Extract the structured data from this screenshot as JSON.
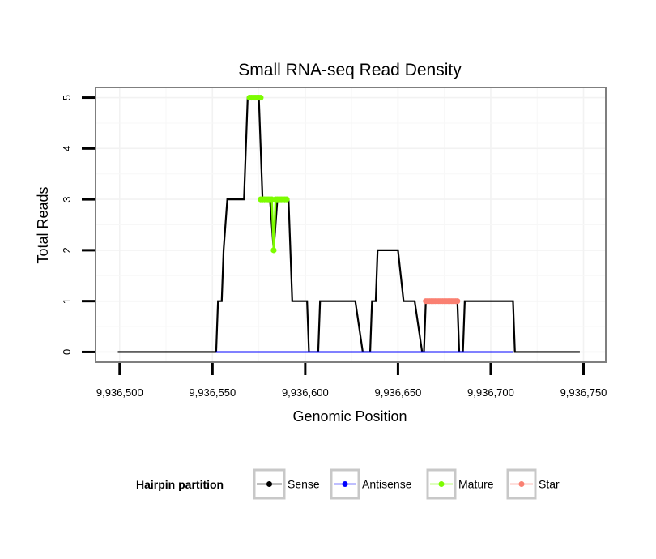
{
  "chart_data": {
    "type": "line",
    "title": "Small RNA-seq Read Density",
    "xlabel": "Genomic Position",
    "ylabel": "Total Reads",
    "xlim": [
      9936487,
      9936762
    ],
    "ylim": [
      -0.2,
      5.2
    ],
    "x_ticks": [
      9936500,
      9936550,
      9936600,
      9936650,
      9936700,
      9936750
    ],
    "x_tick_labels": [
      "9,936,500",
      "9,936,550",
      "9,936,600",
      "9,936,650",
      "9,936,700",
      "9,936,750"
    ],
    "y_ticks": [
      0,
      1,
      2,
      3,
      4,
      5
    ],
    "y_tick_labels": [
      "0",
      "1",
      "2",
      "3",
      "4",
      "5"
    ],
    "grid": true,
    "legend": {
      "title": "Hairpin partition",
      "position": "bottom",
      "entries": [
        "Sense",
        "Antisense",
        "Mature",
        "Star"
      ]
    },
    "series": [
      {
        "name": "Sense",
        "color": "#000000",
        "x": [
          9936499,
          9936552,
          9936553,
          9936555,
          9936556,
          9936558,
          9936567,
          9936569,
          9936573,
          9936575,
          9936577,
          9936579,
          9936581,
          9936583,
          9936585,
          9936587,
          9936589,
          9936591,
          9936593,
          9936596,
          9936599,
          9936600,
          9936601,
          9936602,
          9936607,
          9936608,
          9936627,
          9936631,
          9936632,
          9936635,
          9936636,
          9936638,
          9936639,
          9936650,
          9936653,
          9936654,
          9936659,
          9936663,
          9936664,
          9936665,
          9936682,
          9936683,
          9936685,
          9936686,
          9936712,
          9936713,
          9936748
        ],
        "y": [
          0,
          0,
          1,
          1,
          2,
          3,
          3,
          5,
          5,
          5,
          3,
          3,
          3,
          2,
          3,
          3,
          3,
          3,
          1,
          1,
          1,
          1,
          1,
          0,
          0,
          1,
          1,
          0,
          0,
          0,
          1,
          1,
          2,
          2,
          1,
          1,
          1,
          0,
          0,
          1,
          1,
          0,
          0,
          1,
          1,
          0,
          0
        ],
        "points": false
      },
      {
        "name": "Antisense",
        "color": "#0000ff",
        "x": [
          9936552,
          9936712
        ],
        "y": [
          0,
          0
        ],
        "points": false
      },
      {
        "name": "Mature",
        "color": "#7cfc00",
        "x": [
          9936570,
          9936571,
          9936572,
          9936573,
          9936574,
          9936575,
          9936576,
          9936576,
          9936577,
          9936578,
          9936579,
          9936580,
          9936581,
          9936582,
          9936583,
          9936584,
          9936585,
          9936586,
          9936587,
          9936588,
          9936589,
          9936590
        ],
        "y": [
          5,
          5,
          5,
          5,
          5,
          5,
          5,
          3,
          3,
          3,
          3,
          3,
          3,
          3,
          2,
          3,
          3,
          3,
          3,
          3,
          3,
          3
        ],
        "points": true,
        "segments": [
          [
            0,
            6
          ],
          [
            7,
            21
          ]
        ]
      },
      {
        "name": "Star",
        "color": "#fa8072",
        "x": [
          9936665,
          9936666,
          9936667,
          9936668,
          9936669,
          9936670,
          9936671,
          9936672,
          9936673,
          9936674,
          9936675,
          9936676,
          9936677,
          9936678,
          9936679,
          9936680,
          9936681,
          9936682
        ],
        "y": [
          1,
          1,
          1,
          1,
          1,
          1,
          1,
          1,
          1,
          1,
          1,
          1,
          1,
          1,
          1,
          1,
          1,
          1
        ],
        "points": true,
        "segments": [
          [
            0,
            17
          ]
        ]
      }
    ]
  }
}
